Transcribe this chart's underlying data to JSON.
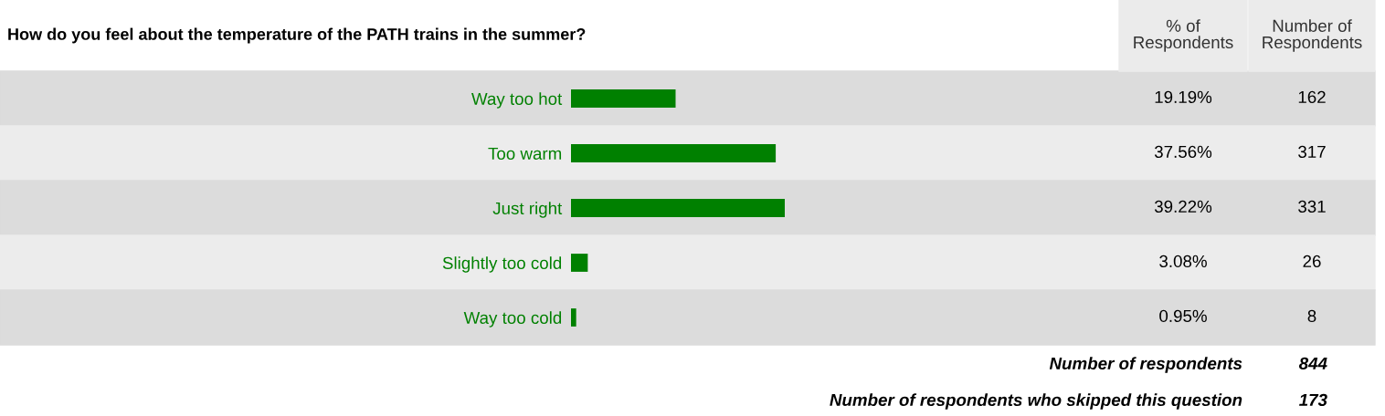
{
  "chart_data": {
    "type": "bar",
    "orientation": "horizontal",
    "title": "How do you feel about the temperature of the PATH trains in the summer?",
    "categories": [
      "Way too hot",
      "Too warm",
      "Just right",
      "Slightly too cold",
      "Way too cold"
    ],
    "values": [
      19.19,
      37.56,
      39.22,
      3.08,
      0.95
    ],
    "value_labels": [
      "19.19%",
      "37.56%",
      "39.22%",
      "3.08%",
      "0.95%"
    ],
    "color": "#008000",
    "tick_labels": "y",
    "grid": false,
    "legend": false,
    "annotations": [
      "% of\nRespondents",
      "Number of\nRespondents",
      "162",
      "317",
      "331",
      "26",
      "8",
      "Number of respondents",
      "844",
      "Number of respondents who skipped this question",
      "173"
    ]
  }
}
